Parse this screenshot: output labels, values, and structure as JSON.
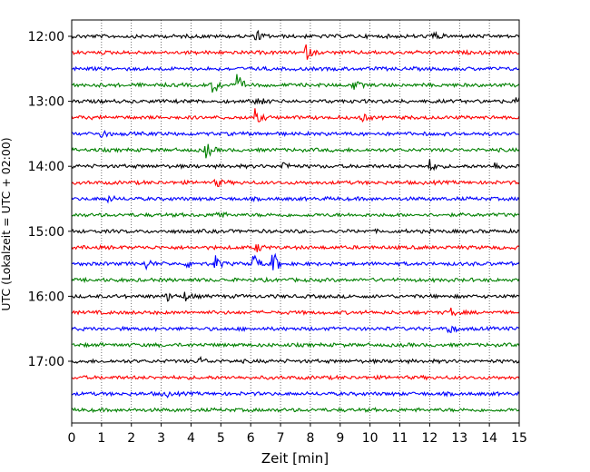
{
  "chart_data": {
    "type": "line",
    "title": "",
    "xlabel": "Zeit  [min]",
    "ylabel": "UTC (Lokalzeit = UTC + 02:00)",
    "xlim": [
      0,
      15
    ],
    "x_ticks": [
      "0",
      "1",
      "2",
      "3",
      "4",
      "5",
      "6",
      "7",
      "8",
      "9",
      "10",
      "11",
      "12",
      "13",
      "14",
      "15"
    ],
    "y_ticks": [
      "12:00",
      "13:00",
      "14:00",
      "15:00",
      "16:00",
      "17:00"
    ],
    "x_grid": "dotted vertical lines every minute",
    "traces_per_hour": 4,
    "minutes_per_trace": 15,
    "trace_colors": [
      "#000000",
      "#ff0000",
      "#0000ff",
      "#008000"
    ],
    "traces": [
      {
        "start": "12:00",
        "events": [
          {
            "t": 6.2,
            "a": 0.4
          },
          {
            "t": 12.1,
            "a": 0.35
          }
        ]
      },
      {
        "start": "12:15",
        "events": [
          {
            "t": 7.85,
            "a": 0.5
          }
        ]
      },
      {
        "start": "12:30",
        "events": []
      },
      {
        "start": "12:45",
        "events": [
          {
            "t": 4.75,
            "a": 0.75
          },
          {
            "t": 5.55,
            "a": 0.75
          },
          {
            "t": 9.45,
            "a": 0.35
          }
        ]
      },
      {
        "start": "13:00",
        "events": [
          {
            "t": 6.2,
            "a": 0.35
          },
          {
            "t": 14.9,
            "a": 0.3
          }
        ]
      },
      {
        "start": "13:15",
        "events": [
          {
            "t": 6.15,
            "a": 0.55
          },
          {
            "t": 9.7,
            "a": 0.3
          }
        ]
      },
      {
        "start": "13:30",
        "events": [
          {
            "t": 1.0,
            "a": 0.3
          }
        ]
      },
      {
        "start": "13:45",
        "events": [
          {
            "t": 4.5,
            "a": 0.6
          }
        ]
      },
      {
        "start": "14:00",
        "events": [
          {
            "t": 7.1,
            "a": 0.35
          },
          {
            "t": 12.0,
            "a": 0.4
          },
          {
            "t": 14.2,
            "a": 0.3
          }
        ]
      },
      {
        "start": "14:15",
        "events": [
          {
            "t": 4.85,
            "a": 0.3
          }
        ]
      },
      {
        "start": "14:30",
        "events": [
          {
            "t": 1.2,
            "a": 0.25
          }
        ]
      },
      {
        "start": "14:45",
        "events": [
          {
            "t": 4.85,
            "a": 0.4
          }
        ]
      },
      {
        "start": "15:00",
        "events": []
      },
      {
        "start": "15:15",
        "events": [
          {
            "t": 6.2,
            "a": 0.3
          }
        ]
      },
      {
        "start": "15:30",
        "events": [
          {
            "t": 2.5,
            "a": 0.35
          },
          {
            "t": 3.9,
            "a": 0.3
          },
          {
            "t": 4.8,
            "a": 0.55
          },
          {
            "t": 6.1,
            "a": 0.75
          },
          {
            "t": 6.75,
            "a": 0.9
          }
        ]
      },
      {
        "start": "15:45",
        "events": []
      },
      {
        "start": "16:00",
        "events": [
          {
            "t": 3.2,
            "a": 0.3
          },
          {
            "t": 3.8,
            "a": 0.3
          }
        ]
      },
      {
        "start": "16:15",
        "events": [
          {
            "t": 12.7,
            "a": 0.3
          }
        ]
      },
      {
        "start": "16:30",
        "events": [
          {
            "t": 12.6,
            "a": 0.45
          }
        ]
      },
      {
        "start": "16:45",
        "events": []
      },
      {
        "start": "17:00",
        "events": [
          {
            "t": 4.3,
            "a": 0.25
          }
        ]
      },
      {
        "start": "17:15",
        "events": []
      },
      {
        "start": "17:30",
        "events": [
          {
            "t": 3.1,
            "a": 0.25
          }
        ]
      },
      {
        "start": "17:45",
        "events": []
      }
    ]
  }
}
